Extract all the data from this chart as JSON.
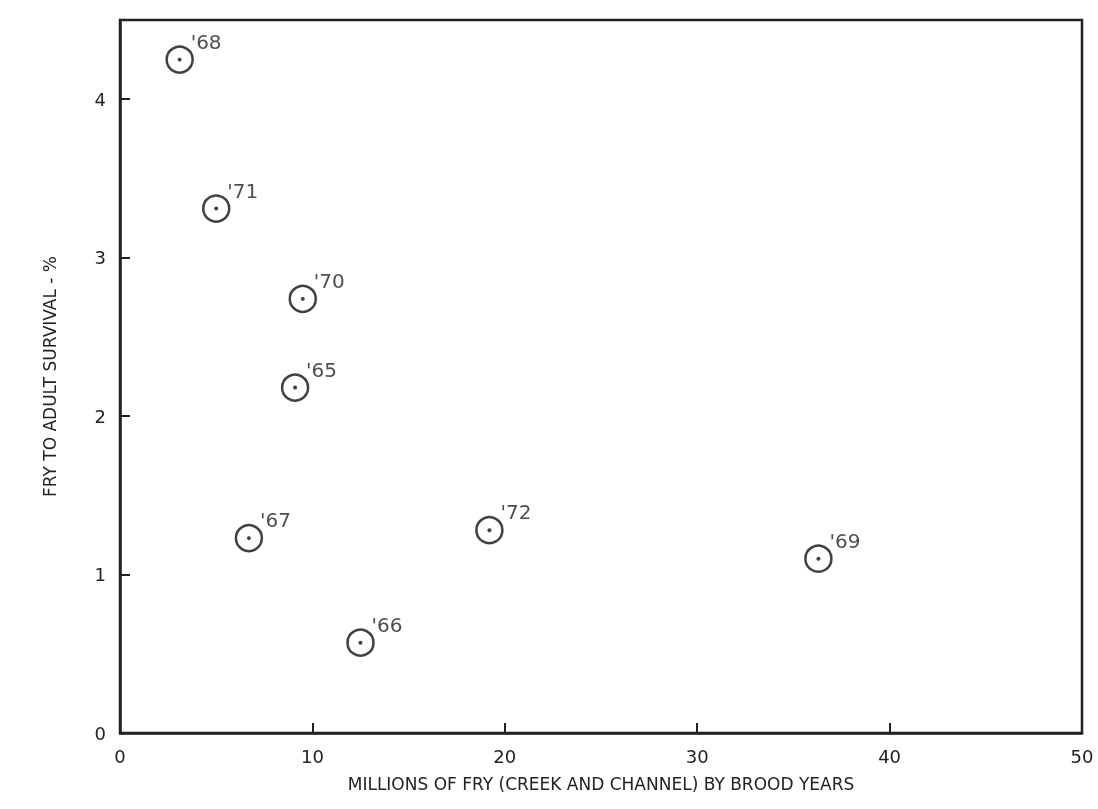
{
  "chart_data": {
    "type": "scatter",
    "xlabel": "MILLIONS OF FRY (CREEK AND CHANNEL) BY BROOD YEARS",
    "ylabel": "FRY TO ADULT SURVIVAL - %",
    "x": [
      3.1,
      5.0,
      9.5,
      9.1,
      6.7,
      12.5,
      19.2,
      36.3
    ],
    "series": [
      {
        "color": "#111111",
        "values": [
          4.25,
          3.31,
          2.74,
          2.18,
          1.23,
          0.57,
          1.28,
          1.1
        ]
      }
    ],
    "annotations": [
      {
        "text": "'68",
        "x": 3.1,
        "y": 4.25
      },
      {
        "text": "'71",
        "x": 5.0,
        "y": 3.31
      },
      {
        "text": "'70",
        "x": 9.5,
        "y": 2.74
      },
      {
        "text": "'65",
        "x": 9.1,
        "y": 2.18
      },
      {
        "text": "'67",
        "x": 6.7,
        "y": 1.23
      },
      {
        "text": "'66",
        "x": 12.5,
        "y": 0.57
      },
      {
        "text": "'72",
        "x": 19.2,
        "y": 1.28
      },
      {
        "text": "'69",
        "x": 36.3,
        "y": 1.1
      }
    ],
    "xlim": [
      0,
      50
    ],
    "xticks": [
      0,
      10,
      20,
      30,
      40,
      50
    ],
    "ylim": [
      0,
      4.5
    ],
    "yticks": [
      0,
      1,
      2,
      3,
      4
    ],
    "marker": "circle",
    "grid": false
  }
}
